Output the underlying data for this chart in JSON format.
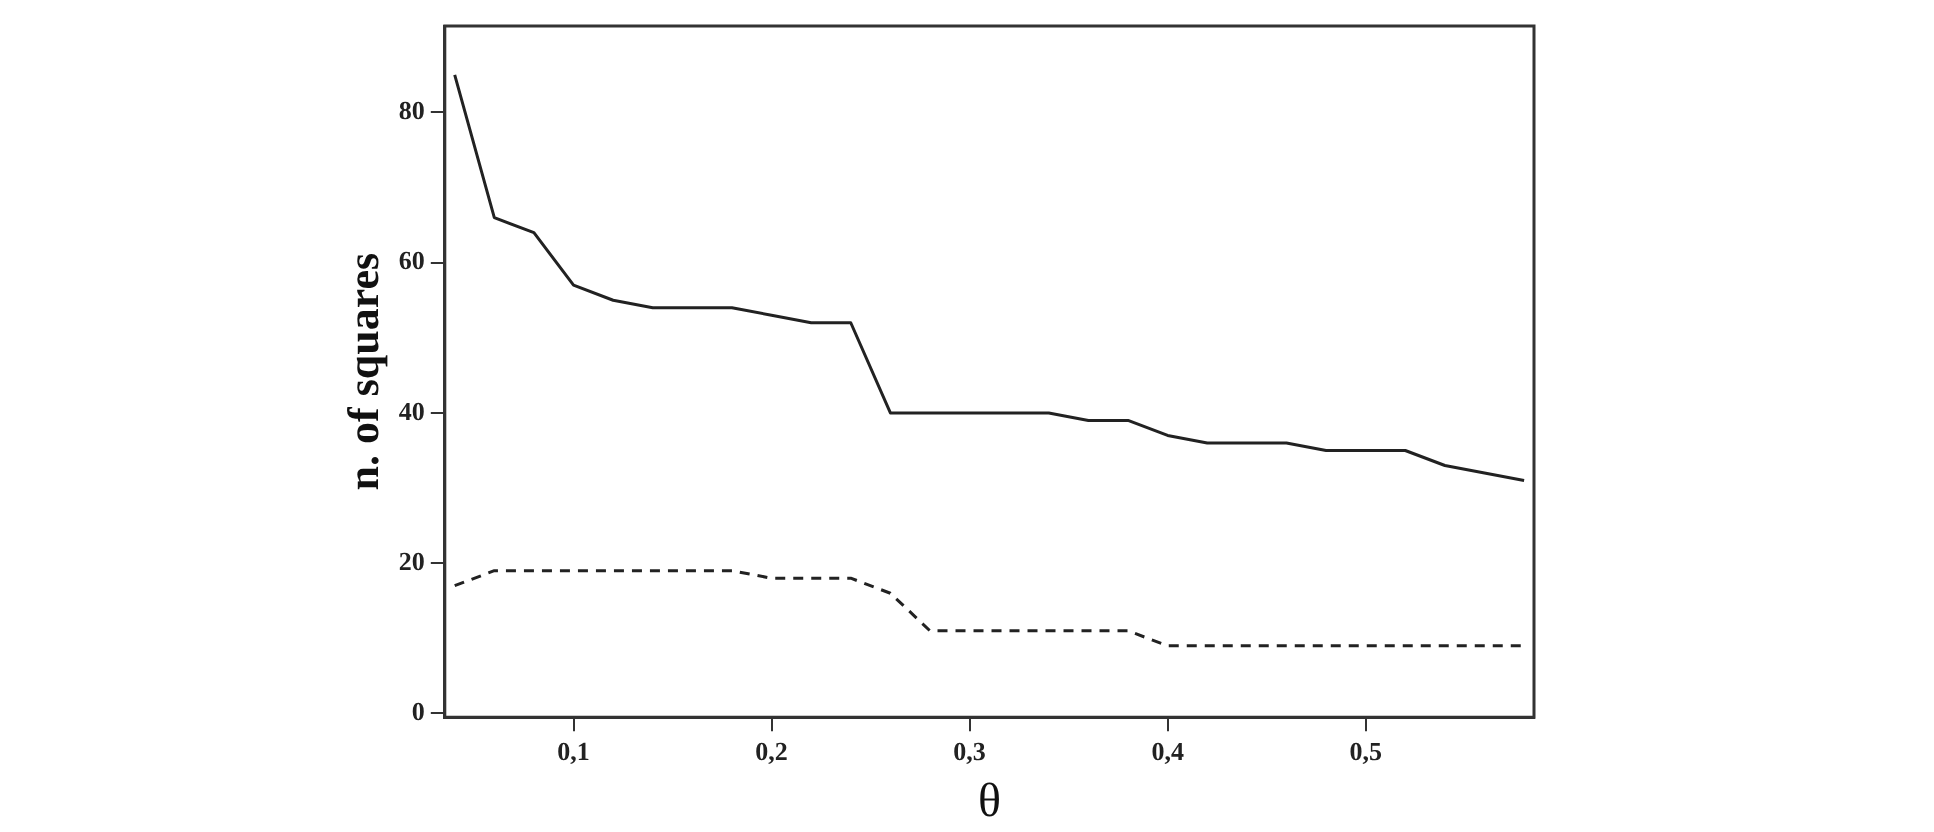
{
  "chart_data": {
    "type": "line",
    "xlabel": "θ",
    "ylabel": "n. of squares",
    "x": [
      0.04,
      0.06,
      0.08,
      0.1,
      0.12,
      0.14,
      0.16,
      0.18,
      0.2,
      0.22,
      0.24,
      0.26,
      0.28,
      0.3,
      0.32,
      0.34,
      0.36,
      0.38,
      0.4,
      0.42,
      0.44,
      0.46,
      0.48,
      0.5,
      0.52,
      0.54,
      0.56,
      0.58
    ],
    "series": [
      {
        "color": "#222222",
        "line_style": "solid",
        "values": [
          85,
          66,
          64,
          57,
          55,
          54,
          54,
          54,
          53,
          52,
          52,
          40,
          40,
          40,
          40,
          40,
          39,
          39,
          37,
          36,
          36,
          36,
          35,
          35,
          35,
          33,
          32,
          31
        ]
      },
      {
        "color": "#222222",
        "line_style": "dashed",
        "values": [
          17,
          19,
          19,
          19,
          19,
          19,
          19,
          19,
          18,
          18,
          18,
          16,
          11,
          11,
          11,
          11,
          11,
          11,
          9,
          9,
          9,
          9,
          9,
          9,
          9,
          9,
          9,
          9
        ]
      }
    ],
    "xlim": [
      0.035,
      0.585
    ],
    "ylim": [
      -0.5,
      91.5
    ],
    "xticks": [
      {
        "value": 0.1,
        "label": "0,1"
      },
      {
        "value": 0.2,
        "label": "0,2"
      },
      {
        "value": 0.3,
        "label": "0,3"
      },
      {
        "value": 0.4,
        "label": "0,4"
      },
      {
        "value": 0.5,
        "label": "0,5"
      }
    ],
    "yticks": [
      0,
      20,
      40,
      60,
      80
    ],
    "grid": false,
    "legend": false,
    "marker": "none"
  }
}
